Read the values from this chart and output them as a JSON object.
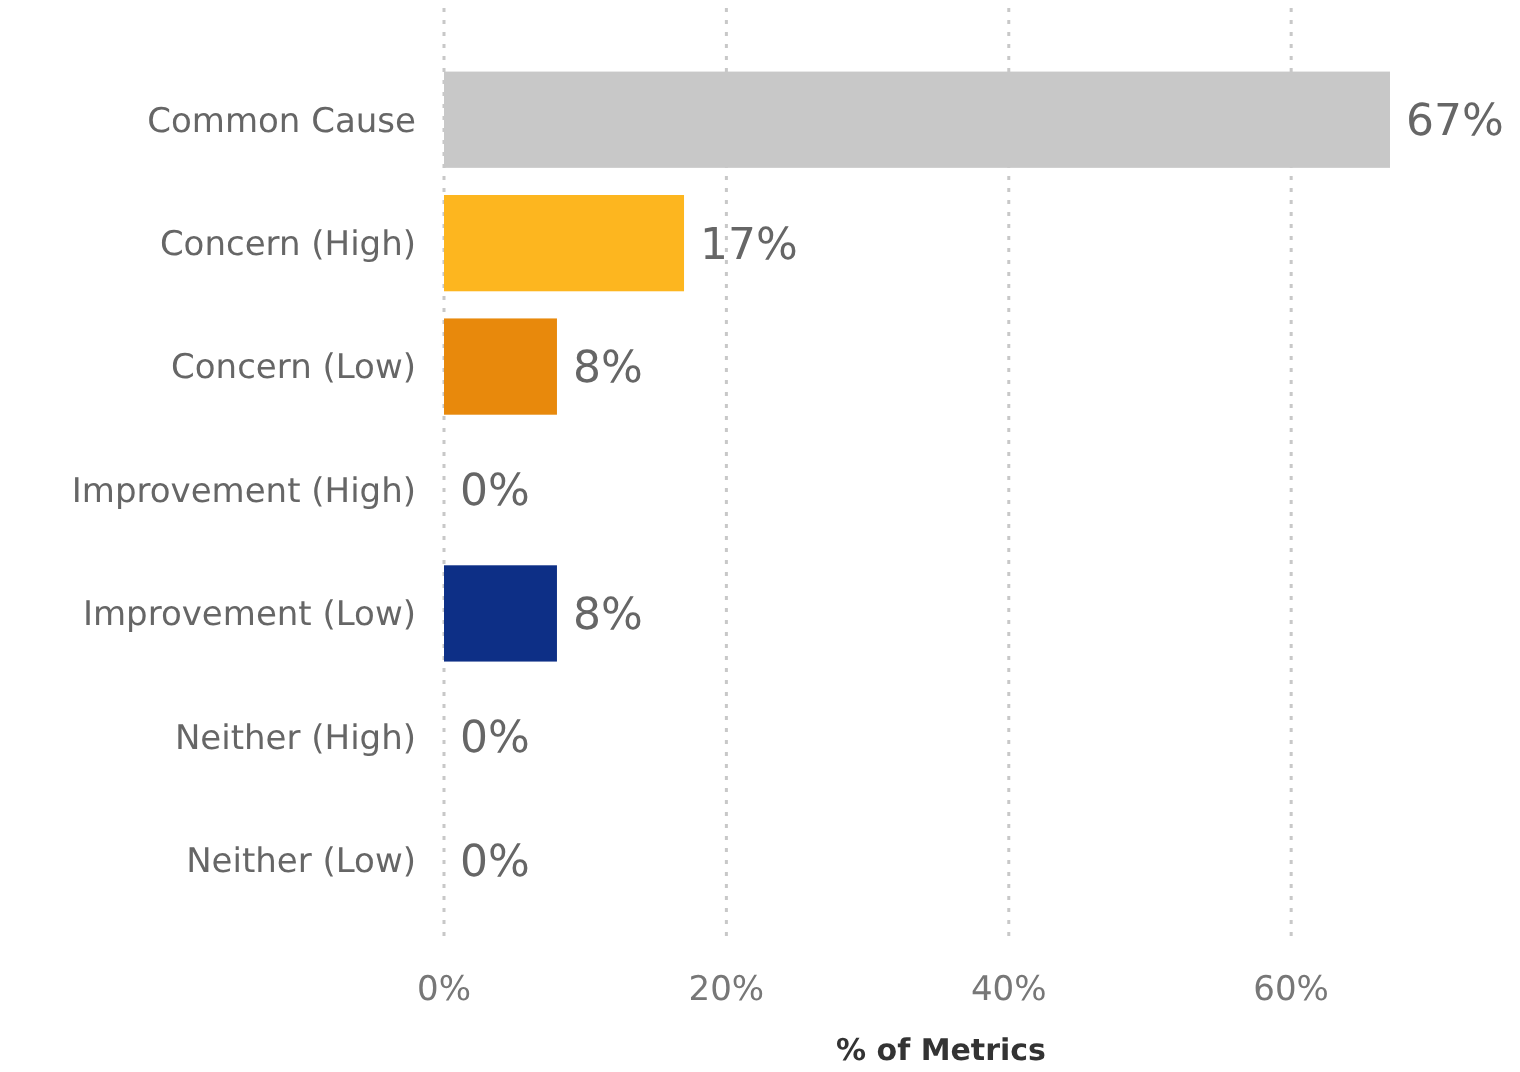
{
  "chart_data": {
    "type": "bar",
    "orientation": "horizontal",
    "xlabel": "% of Metrics",
    "categories": [
      "Common Cause",
      "Concern (High)",
      "Concern (Low)",
      "Improvement (High)",
      "Improvement (Low)",
      "Neither (High)",
      "Neither (Low)"
    ],
    "values": [
      67,
      17,
      8,
      0,
      8,
      0,
      0
    ],
    "colors": [
      "#c8c8c8",
      "#fdb61f",
      "#e8890c",
      "#c8c8c8",
      "#0d2f86",
      "#c8c8c8",
      "#c8c8c8"
    ],
    "value_labels": [
      "67%",
      "17%",
      "8%",
      "0%",
      "8%",
      "0%",
      "0%"
    ],
    "xlim": [
      0,
      67
    ],
    "xticks": [
      {
        "value": 0,
        "label": "0%"
      },
      {
        "value": 20,
        "label": "20%"
      },
      {
        "value": 40,
        "label": "40%"
      },
      {
        "value": 60,
        "label": "60%"
      }
    ],
    "grid": "x"
  }
}
